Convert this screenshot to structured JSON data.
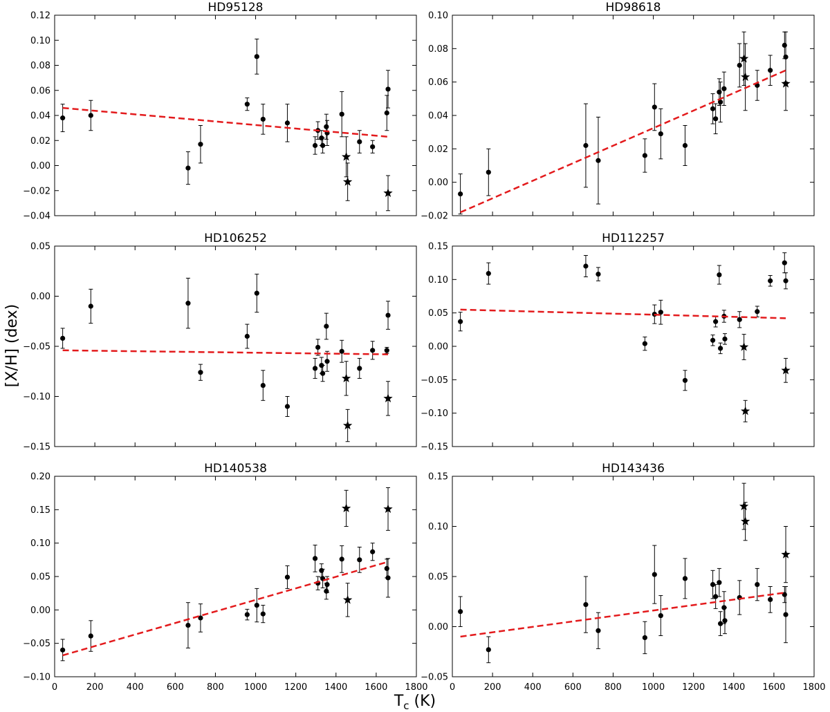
{
  "figure": {
    "ylabel": "[X/H] (dex)",
    "xlabel_main": "T",
    "xlabel_sub": "c",
    "xlabel_unit": " (K)"
  },
  "chart_data": [
    {
      "type": "scatter",
      "title": "HD95128",
      "xlim": [
        0,
        1800
      ],
      "ylim": [
        -0.04,
        0.12
      ],
      "xticks": [
        0,
        200,
        400,
        600,
        800,
        1000,
        1200,
        1400,
        1600,
        1800
      ],
      "xtick_labels": [
        "0",
        "200",
        "400",
        "600",
        "800",
        "1000",
        "1200",
        "1400",
        "1600",
        "1800"
      ],
      "show_xtick_labels": false,
      "yticks": [
        -0.04,
        -0.02,
        0.0,
        0.02,
        0.04,
        0.06,
        0.08,
        0.1,
        0.12
      ],
      "ytick_labels": [
        "−0.04",
        "−0.02",
        "0.00",
        "0.02",
        "0.04",
        "0.06",
        "0.08",
        "0.10",
        "0.12"
      ],
      "fit": {
        "x": [
          40,
          1659
        ],
        "y": [
          0.046,
          0.023
        ]
      },
      "points": [
        {
          "x": 40,
          "y": 0.038,
          "err": 0.011
        },
        {
          "x": 180,
          "y": 0.04,
          "err": 0.012
        },
        {
          "x": 664,
          "y": -0.002,
          "err": 0.013
        },
        {
          "x": 726,
          "y": 0.017,
          "err": 0.015
        },
        {
          "x": 958,
          "y": 0.049,
          "err": 0.005
        },
        {
          "x": 1006,
          "y": 0.087,
          "err": 0.014
        },
        {
          "x": 1037,
          "y": 0.037,
          "err": 0.012
        },
        {
          "x": 1158,
          "y": 0.034,
          "err": 0.015
        },
        {
          "x": 1296,
          "y": 0.016,
          "err": 0.007
        },
        {
          "x": 1310,
          "y": 0.028,
          "err": 0.007
        },
        {
          "x": 1328,
          "y": 0.022,
          "err": 0.006
        },
        {
          "x": 1334,
          "y": 0.016,
          "err": 0.006
        },
        {
          "x": 1352,
          "y": 0.031,
          "err": 0.01
        },
        {
          "x": 1356,
          "y": 0.026,
          "err": 0.01
        },
        {
          "x": 1429,
          "y": 0.041,
          "err": 0.018
        },
        {
          "x": 1517,
          "y": 0.019,
          "err": 0.009
        },
        {
          "x": 1582,
          "y": 0.015,
          "err": 0.005
        },
        {
          "x": 1653,
          "y": 0.042,
          "err": 0.014
        },
        {
          "x": 1659,
          "y": 0.061,
          "err": 0.015
        }
      ],
      "stars": [
        {
          "x": 1451,
          "y": 0.007,
          "err": 0.016
        },
        {
          "x": 1458,
          "y": -0.013,
          "err": 0.015
        },
        {
          "x": 1659,
          "y": -0.022,
          "err": 0.014
        }
      ]
    },
    {
      "type": "scatter",
      "title": "HD98618",
      "xlim": [
        0,
        1800
      ],
      "ylim": [
        -0.02,
        0.1
      ],
      "xticks": [
        0,
        200,
        400,
        600,
        800,
        1000,
        1200,
        1400,
        1600,
        1800
      ],
      "xtick_labels": [
        "0",
        "200",
        "400",
        "600",
        "800",
        "1000",
        "1200",
        "1400",
        "1600",
        "1800"
      ],
      "show_xtick_labels": false,
      "yticks": [
        -0.02,
        0.0,
        0.02,
        0.04,
        0.06,
        0.08,
        0.1
      ],
      "ytick_labels": [
        "−0.02",
        "0.00",
        "0.02",
        "0.04",
        "0.06",
        "0.08",
        "0.10"
      ],
      "fit": {
        "x": [
          40,
          1659
        ],
        "y": [
          -0.018,
          0.067
        ]
      },
      "points": [
        {
          "x": 40,
          "y": -0.007,
          "err": 0.012
        },
        {
          "x": 180,
          "y": 0.006,
          "err": 0.014
        },
        {
          "x": 664,
          "y": 0.022,
          "err": 0.025
        },
        {
          "x": 726,
          "y": 0.013,
          "err": 0.026
        },
        {
          "x": 958,
          "y": 0.016,
          "err": 0.01
        },
        {
          "x": 1006,
          "y": 0.045,
          "err": 0.014
        },
        {
          "x": 1037,
          "y": 0.029,
          "err": 0.015
        },
        {
          "x": 1158,
          "y": 0.022,
          "err": 0.012
        },
        {
          "x": 1296,
          "y": 0.044,
          "err": 0.009
        },
        {
          "x": 1310,
          "y": 0.038,
          "err": 0.009
        },
        {
          "x": 1328,
          "y": 0.054,
          "err": 0.008
        },
        {
          "x": 1334,
          "y": 0.048,
          "err": 0.012
        },
        {
          "x": 1352,
          "y": 0.056,
          "err": 0.01
        },
        {
          "x": 1429,
          "y": 0.07,
          "err": 0.013
        },
        {
          "x": 1517,
          "y": 0.058,
          "err": 0.009
        },
        {
          "x": 1582,
          "y": 0.067,
          "err": 0.009
        },
        {
          "x": 1653,
          "y": 0.082,
          "err": 0.008
        },
        {
          "x": 1659,
          "y": 0.075,
          "err": 0.015
        }
      ],
      "stars": [
        {
          "x": 1451,
          "y": 0.074,
          "err": 0.016
        },
        {
          "x": 1458,
          "y": 0.063,
          "err": 0.02
        },
        {
          "x": 1659,
          "y": 0.059,
          "err": 0.016
        }
      ]
    },
    {
      "type": "scatter",
      "title": "HD106252",
      "xlim": [
        0,
        1800
      ],
      "ylim": [
        -0.15,
        0.05
      ],
      "xticks": [
        0,
        200,
        400,
        600,
        800,
        1000,
        1200,
        1400,
        1600,
        1800
      ],
      "xtick_labels": [
        "0",
        "200",
        "400",
        "600",
        "800",
        "1000",
        "1200",
        "1400",
        "1600",
        "1800"
      ],
      "show_xtick_labels": false,
      "yticks": [
        -0.15,
        -0.1,
        -0.05,
        0.0,
        0.05
      ],
      "ytick_labels": [
        "−0.15",
        "−0.10",
        "−0.05",
        "0.00",
        "0.05"
      ],
      "fit": {
        "x": [
          40,
          1659
        ],
        "y": [
          -0.054,
          -0.058
        ]
      },
      "points": [
        {
          "x": 40,
          "y": -0.042,
          "err": 0.01
        },
        {
          "x": 180,
          "y": -0.01,
          "err": 0.017
        },
        {
          "x": 664,
          "y": -0.007,
          "err": 0.025
        },
        {
          "x": 726,
          "y": -0.076,
          "err": 0.008
        },
        {
          "x": 958,
          "y": -0.04,
          "err": 0.012
        },
        {
          "x": 1006,
          "y": 0.003,
          "err": 0.019
        },
        {
          "x": 1037,
          "y": -0.089,
          "err": 0.015
        },
        {
          "x": 1158,
          "y": -0.11,
          "err": 0.01
        },
        {
          "x": 1296,
          "y": -0.072,
          "err": 0.01
        },
        {
          "x": 1310,
          "y": -0.051,
          "err": 0.008
        },
        {
          "x": 1328,
          "y": -0.069,
          "err": 0.008
        },
        {
          "x": 1334,
          "y": -0.077,
          "err": 0.008
        },
        {
          "x": 1352,
          "y": -0.03,
          "err": 0.013
        },
        {
          "x": 1356,
          "y": -0.065,
          "err": 0.01
        },
        {
          "x": 1429,
          "y": -0.055,
          "err": 0.011
        },
        {
          "x": 1517,
          "y": -0.072,
          "err": 0.01
        },
        {
          "x": 1582,
          "y": -0.054,
          "err": 0.009
        },
        {
          "x": 1653,
          "y": -0.054,
          "err": 0.003
        },
        {
          "x": 1659,
          "y": -0.019,
          "err": 0.014
        }
      ],
      "stars": [
        {
          "x": 1451,
          "y": -0.082,
          "err": 0.017
        },
        {
          "x": 1458,
          "y": -0.129,
          "err": 0.016
        },
        {
          "x": 1659,
          "y": -0.102,
          "err": 0.017
        }
      ]
    },
    {
      "type": "scatter",
      "title": "HD112257",
      "xlim": [
        0,
        1800
      ],
      "ylim": [
        -0.15,
        0.15
      ],
      "xticks": [
        0,
        200,
        400,
        600,
        800,
        1000,
        1200,
        1400,
        1600,
        1800
      ],
      "xtick_labels": [
        "0",
        "200",
        "400",
        "600",
        "800",
        "1000",
        "1200",
        "1400",
        "1600",
        "1800"
      ],
      "show_xtick_labels": false,
      "yticks": [
        -0.15,
        -0.1,
        -0.05,
        0.0,
        0.05,
        0.1,
        0.15
      ],
      "ytick_labels": [
        "−0.15",
        "−0.10",
        "−0.05",
        "0.00",
        "0.05",
        "0.10",
        "0.15"
      ],
      "fit": {
        "x": [
          40,
          1659
        ],
        "y": [
          0.055,
          0.042
        ]
      },
      "points": [
        {
          "x": 40,
          "y": 0.037,
          "err": 0.014
        },
        {
          "x": 180,
          "y": 0.109,
          "err": 0.016
        },
        {
          "x": 664,
          "y": 0.12,
          "err": 0.016
        },
        {
          "x": 726,
          "y": 0.108,
          "err": 0.01
        },
        {
          "x": 958,
          "y": 0.004,
          "err": 0.01
        },
        {
          "x": 1006,
          "y": 0.048,
          "err": 0.014
        },
        {
          "x": 1037,
          "y": 0.051,
          "err": 0.018
        },
        {
          "x": 1158,
          "y": -0.051,
          "err": 0.015
        },
        {
          "x": 1296,
          "y": 0.009,
          "err": 0.008
        },
        {
          "x": 1310,
          "y": 0.037,
          "err": 0.008
        },
        {
          "x": 1328,
          "y": 0.107,
          "err": 0.014
        },
        {
          "x": 1334,
          "y": -0.003,
          "err": 0.008
        },
        {
          "x": 1352,
          "y": 0.045,
          "err": 0.009
        },
        {
          "x": 1356,
          "y": 0.011,
          "err": 0.008
        },
        {
          "x": 1429,
          "y": 0.04,
          "err": 0.012
        },
        {
          "x": 1517,
          "y": 0.052,
          "err": 0.008
        },
        {
          "x": 1582,
          "y": 0.098,
          "err": 0.008
        },
        {
          "x": 1653,
          "y": 0.125,
          "err": 0.015
        },
        {
          "x": 1659,
          "y": 0.098,
          "err": 0.012
        }
      ],
      "stars": [
        {
          "x": 1451,
          "y": -0.001,
          "err": 0.019
        },
        {
          "x": 1458,
          "y": -0.097,
          "err": 0.016
        },
        {
          "x": 1659,
          "y": -0.036,
          "err": 0.018
        }
      ]
    },
    {
      "type": "scatter",
      "title": "HD140538",
      "xlim": [
        0,
        1800
      ],
      "ylim": [
        -0.1,
        0.2
      ],
      "xticks": [
        0,
        200,
        400,
        600,
        800,
        1000,
        1200,
        1400,
        1600,
        1800
      ],
      "xtick_labels": [
        "0",
        "200",
        "400",
        "600",
        "800",
        "1000",
        "1200",
        "1400",
        "1600",
        "1800"
      ],
      "show_xtick_labels": true,
      "yticks": [
        -0.1,
        -0.05,
        0.0,
        0.05,
        0.1,
        0.15,
        0.2
      ],
      "ytick_labels": [
        "−0.10",
        "−0.05",
        "0.00",
        "0.05",
        "0.10",
        "0.15",
        "0.20"
      ],
      "fit": {
        "x": [
          40,
          1659
        ],
        "y": [
          -0.068,
          0.072
        ]
      },
      "points": [
        {
          "x": 40,
          "y": -0.06,
          "err": 0.016
        },
        {
          "x": 180,
          "y": -0.039,
          "err": 0.023
        },
        {
          "x": 664,
          "y": -0.023,
          "err": 0.034
        },
        {
          "x": 726,
          "y": -0.012,
          "err": 0.021
        },
        {
          "x": 958,
          "y": -0.007,
          "err": 0.008
        },
        {
          "x": 1006,
          "y": 0.007,
          "err": 0.025
        },
        {
          "x": 1037,
          "y": -0.006,
          "err": 0.013
        },
        {
          "x": 1158,
          "y": 0.049,
          "err": 0.017
        },
        {
          "x": 1296,
          "y": 0.077,
          "err": 0.02
        },
        {
          "x": 1310,
          "y": 0.04,
          "err": 0.01
        },
        {
          "x": 1328,
          "y": 0.059,
          "err": 0.01
        },
        {
          "x": 1334,
          "y": 0.047,
          "err": 0.014
        },
        {
          "x": 1352,
          "y": 0.028,
          "err": 0.012
        },
        {
          "x": 1356,
          "y": 0.038,
          "err": 0.012
        },
        {
          "x": 1429,
          "y": 0.076,
          "err": 0.02
        },
        {
          "x": 1517,
          "y": 0.075,
          "err": 0.019
        },
        {
          "x": 1582,
          "y": 0.087,
          "err": 0.013
        },
        {
          "x": 1653,
          "y": 0.062,
          "err": 0.014
        },
        {
          "x": 1659,
          "y": 0.048,
          "err": 0.029
        }
      ],
      "stars": [
        {
          "x": 1451,
          "y": 0.152,
          "err": 0.027
        },
        {
          "x": 1458,
          "y": 0.015,
          "err": 0.025
        },
        {
          "x": 1659,
          "y": 0.151,
          "err": 0.032
        }
      ]
    },
    {
      "type": "scatter",
      "title": "HD143436",
      "xlim": [
        0,
        1800
      ],
      "ylim": [
        -0.05,
        0.15
      ],
      "xticks": [
        0,
        200,
        400,
        600,
        800,
        1000,
        1200,
        1400,
        1600,
        1800
      ],
      "xtick_labels": [
        "0",
        "200",
        "400",
        "600",
        "800",
        "1000",
        "1200",
        "1400",
        "1600",
        "1800"
      ],
      "show_xtick_labels": true,
      "yticks": [
        -0.05,
        0.0,
        0.05,
        0.1,
        0.15
      ],
      "ytick_labels": [
        "−0.05",
        "0.00",
        "0.05",
        "0.10",
        "0.15"
      ],
      "fit": {
        "x": [
          40,
          1659
        ],
        "y": [
          -0.01,
          0.034
        ]
      },
      "points": [
        {
          "x": 40,
          "y": 0.015,
          "err": 0.015
        },
        {
          "x": 180,
          "y": -0.023,
          "err": 0.013
        },
        {
          "x": 664,
          "y": 0.022,
          "err": 0.028
        },
        {
          "x": 726,
          "y": -0.004,
          "err": 0.018
        },
        {
          "x": 958,
          "y": -0.011,
          "err": 0.016
        },
        {
          "x": 1006,
          "y": 0.052,
          "err": 0.029
        },
        {
          "x": 1037,
          "y": 0.011,
          "err": 0.02
        },
        {
          "x": 1158,
          "y": 0.048,
          "err": 0.02
        },
        {
          "x": 1296,
          "y": 0.042,
          "err": 0.014
        },
        {
          "x": 1310,
          "y": 0.03,
          "err": 0.012
        },
        {
          "x": 1328,
          "y": 0.044,
          "err": 0.014
        },
        {
          "x": 1334,
          "y": 0.003,
          "err": 0.012
        },
        {
          "x": 1352,
          "y": 0.019,
          "err": 0.016
        },
        {
          "x": 1356,
          "y": 0.006,
          "err": 0.013
        },
        {
          "x": 1429,
          "y": 0.029,
          "err": 0.017
        },
        {
          "x": 1517,
          "y": 0.042,
          "err": 0.016
        },
        {
          "x": 1582,
          "y": 0.027,
          "err": 0.013
        },
        {
          "x": 1653,
          "y": 0.032,
          "err": 0.008
        },
        {
          "x": 1659,
          "y": 0.012,
          "err": 0.028
        }
      ],
      "stars": [
        {
          "x": 1451,
          "y": 0.12,
          "err": 0.023
        },
        {
          "x": 1458,
          "y": 0.105,
          "err": 0.019
        },
        {
          "x": 1659,
          "y": 0.072,
          "err": 0.028
        }
      ]
    }
  ]
}
